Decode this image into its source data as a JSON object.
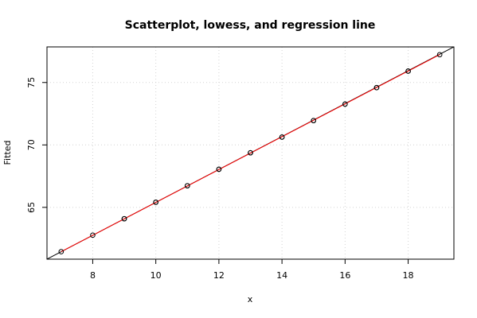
{
  "chart_data": {
    "type": "scatter",
    "title": "Scatterplot, lowess, and regression line",
    "xlabel": "x",
    "ylabel": "Fitted",
    "xlim": [
      6.55,
      19.45
    ],
    "ylim": [
      60.85,
      77.85
    ],
    "x_ticks": [
      8,
      10,
      12,
      14,
      16,
      18
    ],
    "y_ticks": [
      65,
      70,
      75
    ],
    "grid": true,
    "points": [
      {
        "x": 7,
        "y": 61.45
      },
      {
        "x": 8,
        "y": 62.77
      },
      {
        "x": 9,
        "y": 64.09
      },
      {
        "x": 9,
        "y": 64.09
      },
      {
        "x": 10,
        "y": 65.41
      },
      {
        "x": 10,
        "y": 65.41
      },
      {
        "x": 11,
        "y": 66.73
      },
      {
        "x": 11,
        "y": 66.73
      },
      {
        "x": 12,
        "y": 68.05
      },
      {
        "x": 12,
        "y": 68.05
      },
      {
        "x": 13,
        "y": 69.37
      },
      {
        "x": 13,
        "y": 69.37
      },
      {
        "x": 14,
        "y": 70.63
      },
      {
        "x": 14,
        "y": 70.63
      },
      {
        "x": 15,
        "y": 71.95
      },
      {
        "x": 15,
        "y": 71.95
      },
      {
        "x": 16,
        "y": 73.27
      },
      {
        "x": 16,
        "y": 73.27
      },
      {
        "x": 17,
        "y": 74.59
      },
      {
        "x": 17,
        "y": 74.59
      },
      {
        "x": 18,
        "y": 75.91
      },
      {
        "x": 18,
        "y": 75.91
      },
      {
        "x": 19,
        "y": 77.23
      }
    ],
    "lowess": [
      [
        7,
        61.45
      ],
      [
        19,
        77.23
      ]
    ],
    "regression": {
      "intercept": 52.22,
      "slope": 1.318
    },
    "colors": {
      "points": "#000000",
      "lowess": "#ff0000",
      "regression": "#000000",
      "grid": "#d3d3d3"
    }
  }
}
